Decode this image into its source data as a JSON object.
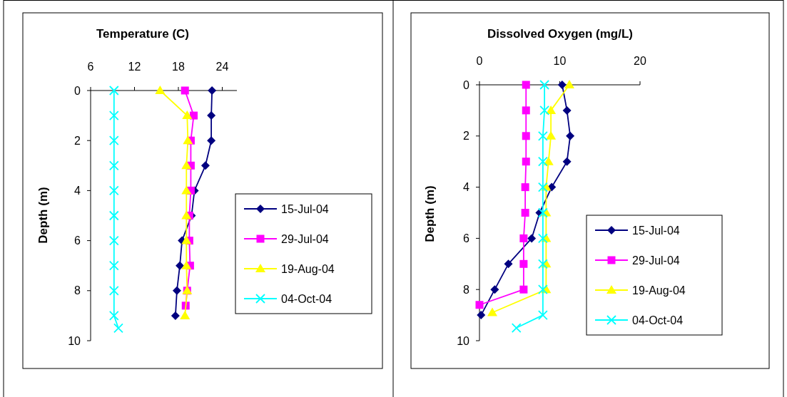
{
  "chart_data": [
    {
      "type": "line",
      "xlabel": "Temperature (C)",
      "ylabel": "Depth (m)",
      "xlim": [
        6,
        26
      ],
      "xticks": [
        6,
        12,
        18,
        24
      ],
      "ylim": [
        10,
        0
      ],
      "yticks": [
        0,
        2,
        4,
        6,
        8,
        10
      ],
      "legend": "right",
      "grid": false,
      "series": [
        {
          "name": "15-Jul-04",
          "color": "#000080",
          "marker": "diamond",
          "x": [
            22.6,
            22.5,
            22.5,
            21.7,
            20.2,
            19.8,
            18.5,
            18.2,
            17.8,
            17.6
          ],
          "values": [
            0,
            1,
            2,
            3,
            4,
            5,
            6,
            7,
            8,
            9
          ]
        },
        {
          "name": "29-Jul-04",
          "color": "#ff00ff",
          "marker": "square",
          "x": [
            18.9,
            20.1,
            19.7,
            19.7,
            19.7,
            19.5,
            19.5,
            19.6,
            19.2,
            19.0
          ],
          "values": [
            0,
            1,
            2,
            3,
            4,
            5,
            6,
            7,
            8,
            8.6
          ]
        },
        {
          "name": "19-Aug-04",
          "color": "#ffff00",
          "marker": "triangle",
          "x": [
            15.5,
            19.2,
            19.3,
            19.1,
            19.1,
            19.1,
            19.1,
            19.1,
            19.2,
            18.9
          ],
          "values": [
            0,
            1,
            2,
            3,
            4,
            5,
            6,
            7,
            8,
            9
          ]
        },
        {
          "name": "04-Oct-04",
          "color": "#00ffff",
          "marker": "cross",
          "x": [
            9.2,
            9.2,
            9.2,
            9.2,
            9.2,
            9.2,
            9.2,
            9.2,
            9.2,
            9.2,
            9.8
          ],
          "values": [
            0,
            1,
            2,
            3,
            4,
            5,
            6,
            7,
            8,
            9,
            9.5
          ]
        }
      ]
    },
    {
      "type": "line",
      "xlabel": "Dissolved Oxygen (mg/L)",
      "ylabel": "Depth (m)",
      "xlim": [
        0,
        20
      ],
      "xticks": [
        0,
        10,
        20
      ],
      "ylim": [
        10,
        0
      ],
      "yticks": [
        0,
        2,
        4,
        6,
        8,
        10
      ],
      "legend": "right",
      "grid": false,
      "series": [
        {
          "name": "15-Jul-04",
          "color": "#000080",
          "marker": "diamond",
          "x": [
            10.3,
            10.9,
            11.3,
            10.9,
            9.0,
            7.5,
            6.5,
            3.6,
            1.9,
            0.2
          ],
          "values": [
            0,
            1,
            2,
            3,
            4,
            5,
            6,
            7,
            8,
            9
          ]
        },
        {
          "name": "29-Jul-04",
          "color": "#ff00ff",
          "marker": "square",
          "x": [
            5.8,
            5.8,
            5.8,
            5.8,
            5.7,
            5.7,
            5.5,
            5.5,
            5.5,
            0.0
          ],
          "values": [
            0,
            1,
            2,
            3,
            4,
            5,
            6,
            7,
            8,
            8.6
          ]
        },
        {
          "name": "19-Aug-04",
          "color": "#ffff00",
          "marker": "triangle",
          "x": [
            11.2,
            8.9,
            8.9,
            8.6,
            8.3,
            8.3,
            8.3,
            8.3,
            8.3,
            1.6
          ],
          "values": [
            0,
            1,
            2,
            3,
            4,
            5,
            6,
            7,
            8,
            8.9
          ]
        },
        {
          "name": "04-Oct-04",
          "color": "#00ffff",
          "marker": "cross",
          "x": [
            8.1,
            8.1,
            7.9,
            7.9,
            7.9,
            7.9,
            7.9,
            7.9,
            7.9,
            7.9,
            4.6
          ],
          "values": [
            0,
            1,
            2,
            3,
            4,
            5,
            6,
            7,
            8,
            9,
            9.5
          ]
        }
      ]
    }
  ]
}
